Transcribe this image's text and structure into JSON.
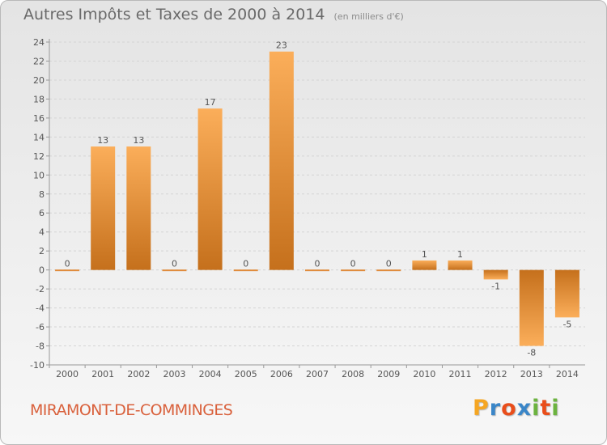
{
  "title": "Autres Impôts et Taxes de 2000 à 2014",
  "subtitle": "(en milliers d'€)",
  "commune": "MIRAMONT-DE-COMMINGES",
  "brand": "Proxiti",
  "colors": {
    "bar_light": "#f9aa55",
    "bar_dark": "#c86f1c",
    "grid": "#d4d4d4",
    "commune_text": "#d9603b"
  },
  "chart_data": {
    "type": "bar",
    "title": "Autres Impôts et Taxes de 2000 à 2014",
    "subtitle": "(en milliers d'€)",
    "categories": [
      "2000",
      "2001",
      "2002",
      "2003",
      "2004",
      "2005",
      "2006",
      "2007",
      "2008",
      "2009",
      "2010",
      "2011",
      "2012",
      "2013",
      "2014"
    ],
    "values": [
      0,
      13,
      13,
      0,
      17,
      0,
      23,
      0,
      0,
      0,
      1,
      1,
      -1,
      -8,
      -5
    ],
    "ylim": [
      -10,
      24
    ],
    "yticks": [
      -10,
      -8,
      -6,
      -4,
      -2,
      0,
      2,
      4,
      6,
      8,
      10,
      12,
      14,
      16,
      18,
      20,
      22,
      24
    ],
    "grid": "horizontal dashed",
    "legend": "none"
  }
}
